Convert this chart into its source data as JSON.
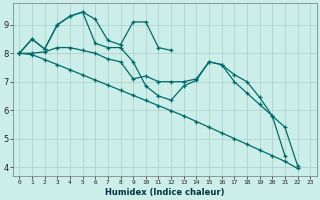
{
  "xlabel": "Humidex (Indice chaleur)",
  "background_color": "#cceee8",
  "line_color": "#006b6b",
  "xlim": [
    -0.5,
    23.5
  ],
  "ylim": [
    3.7,
    9.75
  ],
  "yticks": [
    4,
    5,
    6,
    7,
    8,
    9
  ],
  "xticks": [
    0,
    1,
    2,
    3,
    4,
    5,
    6,
    7,
    8,
    9,
    10,
    11,
    12,
    13,
    14,
    15,
    16,
    17,
    18,
    19,
    20,
    21,
    22,
    23
  ],
  "line1_x": [
    0,
    1,
    2,
    3,
    4,
    5,
    6,
    7,
    8,
    9,
    10,
    11,
    12
  ],
  "line1_y": [
    8.0,
    8.5,
    8.15,
    9.0,
    9.3,
    9.45,
    9.2,
    8.45,
    8.3,
    9.1,
    9.1,
    8.2,
    8.1
  ],
  "line2_x": [
    0,
    1,
    2,
    3,
    4,
    5,
    6,
    7,
    8,
    9,
    10,
    11,
    12,
    13,
    14,
    15,
    16,
    17,
    18,
    19,
    20,
    21
  ],
  "line2_y": [
    8.0,
    8.5,
    8.15,
    9.0,
    9.3,
    9.45,
    8.35,
    8.2,
    8.2,
    7.7,
    6.85,
    6.5,
    6.35,
    6.85,
    7.05,
    7.7,
    7.6,
    7.25,
    7.0,
    6.45,
    5.8,
    4.4
  ],
  "line3_x": [
    0,
    1,
    2,
    3,
    4,
    5,
    6,
    7,
    8,
    9,
    10,
    11,
    12,
    13,
    14,
    15,
    16,
    17,
    18,
    19,
    20,
    21,
    22
  ],
  "line3_y": [
    8.0,
    7.95,
    7.78,
    7.6,
    7.42,
    7.24,
    7.06,
    6.88,
    6.7,
    6.52,
    6.34,
    6.16,
    5.98,
    5.8,
    5.6,
    5.4,
    5.2,
    5.0,
    4.8,
    4.6,
    4.4,
    4.2,
    3.95
  ],
  "line4_x": [
    0,
    1,
    2,
    3,
    4,
    5,
    6,
    7,
    8,
    9,
    10,
    11,
    12,
    13,
    14,
    15,
    16,
    17,
    18,
    19,
    20,
    21,
    22
  ],
  "line4_y": [
    8.0,
    8.0,
    8.05,
    8.2,
    8.2,
    8.1,
    8.0,
    7.8,
    7.7,
    7.1,
    7.2,
    7.0,
    7.0,
    7.0,
    7.1,
    7.7,
    7.6,
    7.0,
    6.6,
    6.2,
    5.8,
    5.4,
    4.05
  ]
}
